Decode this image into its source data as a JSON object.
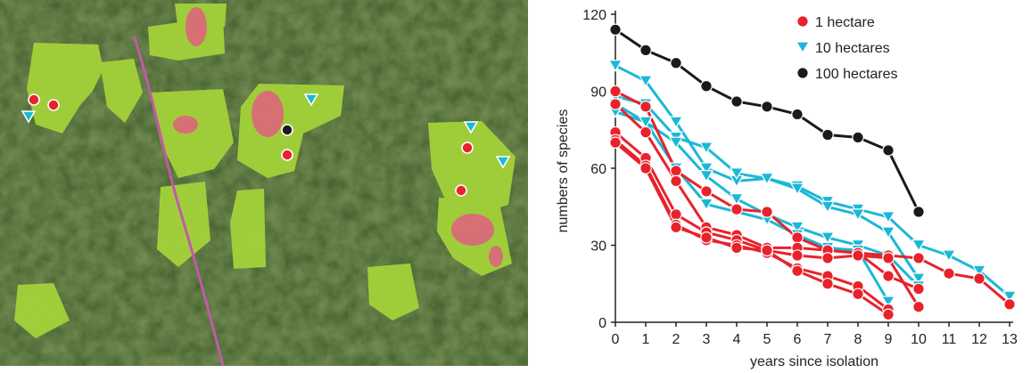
{
  "map": {
    "markers": [
      {
        "kind": "1 hectare",
        "shape": "circle"
      },
      {
        "kind": "1 hectare",
        "shape": "circle"
      },
      {
        "kind": "10 hectares",
        "shape": "triangle"
      },
      {
        "kind": "10 hectares",
        "shape": "triangle"
      },
      {
        "kind": "100 hectares",
        "shape": "circle"
      },
      {
        "kind": "1 hectare",
        "shape": "circle"
      },
      {
        "kind": "10 hectares",
        "shape": "triangle"
      },
      {
        "kind": "1 hectare",
        "shape": "circle"
      },
      {
        "kind": "10 hectares",
        "shape": "triangle"
      },
      {
        "kind": "1 hectare",
        "shape": "circle"
      }
    ]
  },
  "chart_data": {
    "type": "line",
    "title": "",
    "xlabel": "years since isolation",
    "ylabel": "numbers of species",
    "xlim": [
      0,
      13
    ],
    "ylim": [
      0,
      120
    ],
    "xticks": [
      "0",
      "1",
      "2",
      "3",
      "4",
      "5",
      "6",
      "7",
      "8",
      "9",
      "10",
      "11",
      "12",
      "13"
    ],
    "yticks": [
      "0",
      "30",
      "60",
      "90",
      "120"
    ],
    "grid": false,
    "legend_position": "top-right",
    "legend": [
      {
        "label": "1 hectare",
        "color": "#e8222b",
        "marker": "circle"
      },
      {
        "label": "10 hectares",
        "color": "#1bb8d6",
        "marker": "triangle"
      },
      {
        "label": "100 hectares",
        "color": "#1a1a1a",
        "marker": "circle"
      }
    ],
    "series": [
      {
        "group": "100 hectares",
        "color": "#1a1a1a",
        "marker": "circle",
        "points": [
          [
            0,
            114
          ],
          [
            1,
            106
          ],
          [
            2,
            101
          ],
          [
            3,
            92
          ],
          [
            4,
            86
          ],
          [
            5,
            84
          ],
          [
            6,
            81
          ],
          [
            7,
            73
          ],
          [
            8,
            72
          ],
          [
            9,
            67
          ],
          [
            10,
            43
          ]
        ]
      },
      {
        "group": "10 hectares",
        "color": "#1bb8d6",
        "marker": "triangle",
        "points": [
          [
            0,
            100
          ],
          [
            1,
            94
          ],
          [
            2,
            78
          ],
          [
            3,
            60
          ],
          [
            4,
            55
          ],
          [
            5,
            56
          ],
          [
            6,
            53
          ],
          [
            7,
            47
          ],
          [
            8,
            44
          ],
          [
            9,
            41
          ],
          [
            10,
            30
          ],
          [
            11,
            26
          ],
          [
            12,
            20
          ],
          [
            13,
            10
          ]
        ]
      },
      {
        "group": "10 hectares",
        "color": "#1bb8d6",
        "marker": "triangle",
        "points": [
          [
            0,
            88
          ],
          [
            1,
            85
          ],
          [
            2,
            72
          ],
          [
            3,
            68
          ],
          [
            4,
            58
          ],
          [
            5,
            56
          ],
          [
            6,
            52
          ],
          [
            7,
            45
          ],
          [
            8,
            42
          ],
          [
            9,
            35
          ],
          [
            10,
            17
          ]
        ]
      },
      {
        "group": "10 hectares",
        "color": "#1bb8d6",
        "marker": "triangle",
        "points": [
          [
            0,
            82
          ],
          [
            1,
            78
          ],
          [
            2,
            70
          ],
          [
            3,
            57
          ],
          [
            4,
            48
          ],
          [
            5,
            42
          ],
          [
            6,
            37
          ],
          [
            7,
            33
          ],
          [
            8,
            30
          ],
          [
            9,
            26
          ],
          [
            10,
            14
          ]
        ]
      },
      {
        "group": "10 hectares",
        "color": "#1bb8d6",
        "marker": "triangle",
        "points": [
          [
            0,
            85
          ],
          [
            1,
            78
          ],
          [
            2,
            60
          ],
          [
            3,
            46
          ],
          [
            4,
            43
          ],
          [
            5,
            40
          ],
          [
            6,
            34
          ],
          [
            7,
            29
          ],
          [
            8,
            28
          ],
          [
            9,
            8
          ]
        ]
      },
      {
        "group": "1 hectare",
        "color": "#e8222b",
        "marker": "circle",
        "points": [
          [
            0,
            90
          ],
          [
            1,
            84
          ],
          [
            2,
            59
          ],
          [
            3,
            51
          ],
          [
            4,
            44
          ],
          [
            5,
            43
          ],
          [
            6,
            33
          ],
          [
            7,
            28
          ],
          [
            8,
            27
          ],
          [
            9,
            26
          ],
          [
            10,
            25
          ],
          [
            11,
            19
          ],
          [
            12,
            17
          ],
          [
            13,
            7
          ]
        ]
      },
      {
        "group": "1 hectare",
        "color": "#e8222b",
        "marker": "circle",
        "points": [
          [
            0,
            85
          ],
          [
            1,
            74
          ],
          [
            2,
            55
          ],
          [
            3,
            37
          ],
          [
            4,
            34
          ],
          [
            5,
            29
          ],
          [
            6,
            29
          ],
          [
            7,
            28
          ],
          [
            8,
            27
          ],
          [
            9,
            18
          ],
          [
            10,
            13
          ]
        ]
      },
      {
        "group": "1 hectare",
        "color": "#e8222b",
        "marker": "circle",
        "points": [
          [
            0,
            74
          ],
          [
            1,
            64
          ],
          [
            2,
            42
          ],
          [
            3,
            35
          ],
          [
            4,
            32
          ],
          [
            5,
            28
          ],
          [
            6,
            26
          ],
          [
            7,
            25
          ],
          [
            8,
            26
          ],
          [
            9,
            25
          ],
          [
            10,
            6
          ]
        ]
      },
      {
        "group": "1 hectare",
        "color": "#e8222b",
        "marker": "circle",
        "points": [
          [
            0,
            71
          ],
          [
            1,
            61
          ],
          [
            2,
            38
          ],
          [
            3,
            32
          ],
          [
            4,
            30
          ],
          [
            5,
            27
          ],
          [
            6,
            21
          ],
          [
            7,
            18
          ],
          [
            8,
            14
          ],
          [
            9,
            5
          ]
        ]
      },
      {
        "group": "1 hectare",
        "color": "#e8222b",
        "marker": "circle",
        "points": [
          [
            0,
            70
          ],
          [
            1,
            60
          ],
          [
            2,
            37
          ],
          [
            3,
            33
          ],
          [
            4,
            29
          ],
          [
            5,
            28
          ],
          [
            6,
            20
          ],
          [
            7,
            15
          ],
          [
            8,
            11
          ],
          [
            9,
            3
          ]
        ]
      }
    ]
  }
}
